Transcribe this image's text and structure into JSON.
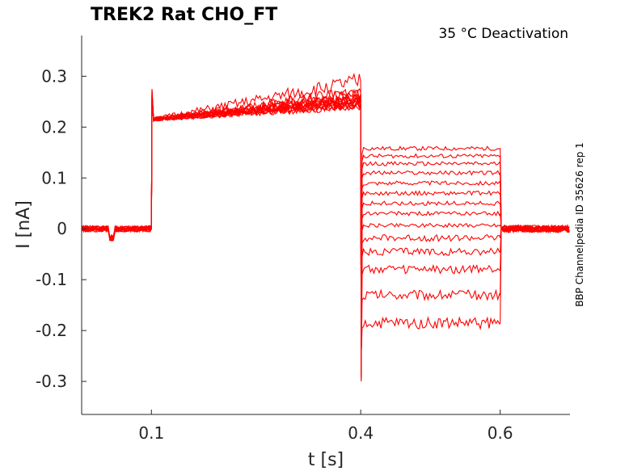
{
  "chart_data": {
    "type": "line",
    "title": "TREK2  Rat  CHO_FT",
    "subtitle": "35 °C  Deactivation",
    "side_label": "BBP Channelpedia ID 35626 rep 1",
    "xlabel": "t [s]",
    "ylabel": "I [nA]",
    "xlim": [
      0.0,
      0.7
    ],
    "ylim": [
      -0.365,
      0.38
    ],
    "xticks": [
      0.1,
      0.4,
      0.6
    ],
    "xtick_labels": [
      "0.1",
      "0.4",
      "0.6"
    ],
    "yticks": [
      0.3,
      0.2,
      0.1,
      0,
      -0.1,
      -0.2,
      -0.3
    ],
    "ytick_labels": [
      "0.3",
      "0.2",
      "0.1",
      "0",
      "-0.1",
      "-0.2",
      "-0.3"
    ],
    "grid": false,
    "color": "#ff0000",
    "protocol": {
      "baseline_end": 0.1,
      "pulse_end": 0.4,
      "step_end": 0.6
    },
    "series": [
      {
        "baseline": 0.0,
        "pulse_start": 0.215,
        "pulse_end": 0.24,
        "step": 0.158
      },
      {
        "baseline": 0.0,
        "pulse_start": 0.215,
        "pulse_end": 0.245,
        "step": 0.143
      },
      {
        "baseline": 0.0,
        "pulse_start": 0.215,
        "pulse_end": 0.25,
        "step": 0.128
      },
      {
        "baseline": 0.0,
        "pulse_start": 0.215,
        "pulse_end": 0.24,
        "step": 0.11
      },
      {
        "baseline": 0.0,
        "pulse_start": 0.215,
        "pulse_end": 0.255,
        "step": 0.09
      },
      {
        "baseline": 0.0,
        "pulse_start": 0.215,
        "pulse_end": 0.26,
        "step": 0.07
      },
      {
        "baseline": 0.0,
        "pulse_start": 0.215,
        "pulse_end": 0.25,
        "step": 0.05
      },
      {
        "baseline": 0.0,
        "pulse_start": 0.215,
        "pulse_end": 0.265,
        "step": 0.03
      },
      {
        "baseline": 0.0,
        "pulse_start": 0.215,
        "pulse_end": 0.245,
        "step": 0.007
      },
      {
        "baseline": 0.0,
        "pulse_start": 0.215,
        "pulse_end": 0.255,
        "step": -0.018
      },
      {
        "baseline": 0.0,
        "pulse_start": 0.215,
        "pulse_end": 0.26,
        "step": -0.045
      },
      {
        "baseline": 0.0,
        "pulse_start": 0.215,
        "pulse_end": 0.25,
        "step": -0.08
      },
      {
        "baseline": 0.0,
        "pulse_start": 0.215,
        "pulse_end": 0.27,
        "step": -0.13
      },
      {
        "baseline": 0.0,
        "pulse_start": 0.215,
        "pulse_end": 0.29,
        "step": -0.185
      }
    ]
  }
}
